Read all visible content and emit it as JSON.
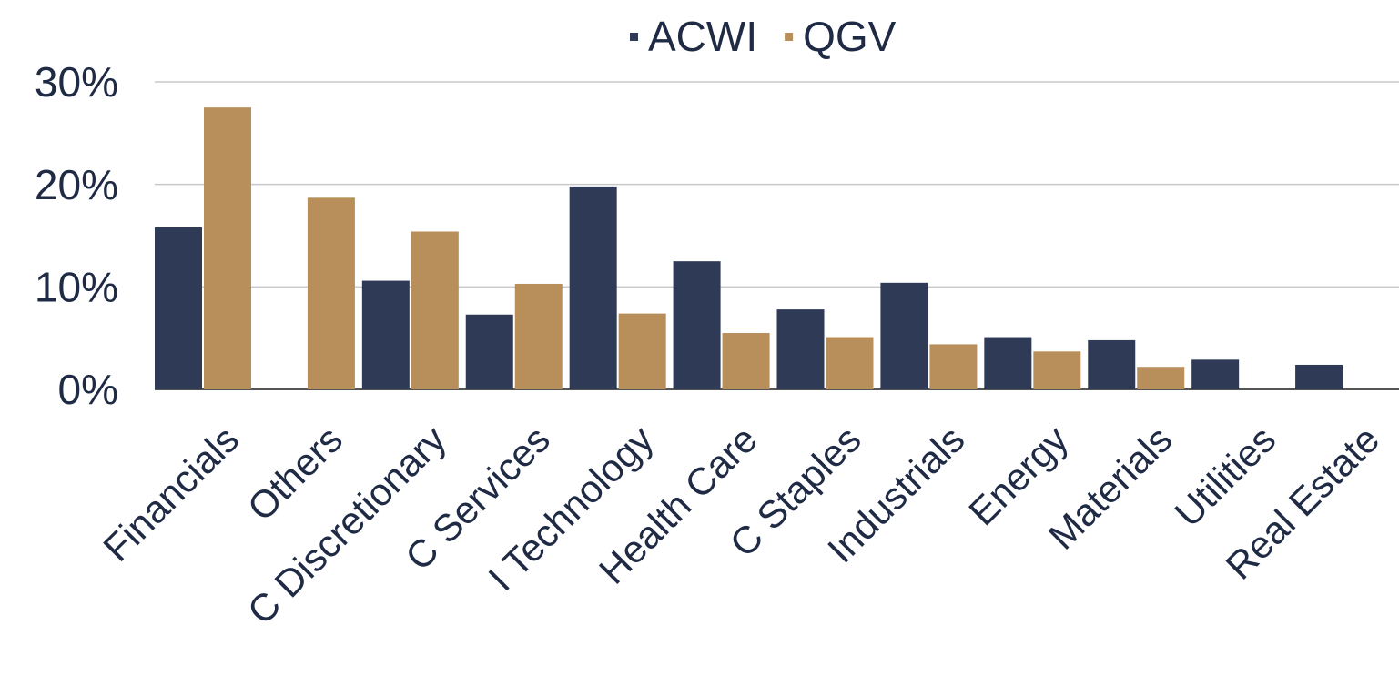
{
  "chart_data": {
    "type": "bar",
    "categories": [
      "Financials",
      "Others",
      "C Discretionary",
      "C Services",
      "I Technology",
      "Health Care",
      "C Staples",
      "Industrials",
      "Energy",
      "Materials",
      "Utilities",
      "Real Estate"
    ],
    "series": [
      {
        "name": "ACWI",
        "color": "#2e3a56",
        "values": [
          15.8,
          0,
          10.6,
          7.3,
          19.8,
          12.5,
          7.8,
          10.4,
          5.1,
          4.8,
          2.9,
          2.4
        ]
      },
      {
        "name": "QGV",
        "color": "#b88f5a",
        "values": [
          27.5,
          18.7,
          15.4,
          10.3,
          7.4,
          5.5,
          5.1,
          4.4,
          3.7,
          2.2,
          0,
          0
        ]
      }
    ],
    "ylim": [
      0,
      30
    ],
    "yticks": [
      {
        "value": 0,
        "label": "0%"
      },
      {
        "value": 10,
        "label": "10%"
      },
      {
        "value": 20,
        "label": "20%"
      },
      {
        "value": 30,
        "label": "30%"
      }
    ],
    "grid": true,
    "legend": "top"
  }
}
